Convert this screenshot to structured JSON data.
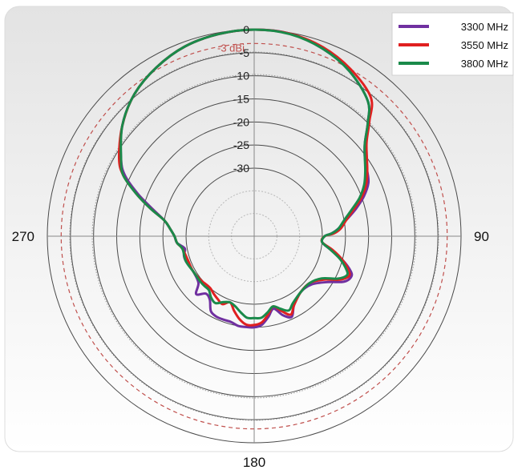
{
  "chart_data": {
    "type": "polar-line",
    "unit": "dBi",
    "r_range": [
      -30,
      0
    ],
    "r_ticks": [
      {
        "value": 0,
        "label": "0"
      },
      {
        "value": -5,
        "label": "-5"
      },
      {
        "value": -10,
        "label": "-10"
      },
      {
        "value": -15,
        "label": "-15"
      },
      {
        "value": -20,
        "label": "-20"
      },
      {
        "value": -25,
        "label": "-25"
      },
      {
        "value": -30,
        "label": "-30"
      }
    ],
    "angle_labels": [
      {
        "angle": 90,
        "label": "90"
      },
      {
        "angle": 180,
        "label": "180"
      },
      {
        "angle": 270,
        "label": "270"
      }
    ],
    "reference": {
      "value": -3,
      "label": "-3 dBi",
      "color": "#c0504d"
    },
    "grid": true,
    "legend_position": "top-right",
    "series": [
      {
        "name": "3300 MHz",
        "color": "#7030a0",
        "points": [
          [
            0,
            0
          ],
          [
            10,
            -0.2
          ],
          [
            20,
            -1.5
          ],
          [
            30,
            -3.5
          ],
          [
            40,
            -6.5
          ],
          [
            45,
            -10
          ],
          [
            50,
            -13.5
          ],
          [
            55,
            -15.5
          ],
          [
            60,
            -16.5
          ],
          [
            65,
            -17.5
          ],
          [
            70,
            -19.5
          ],
          [
            75,
            -22
          ],
          [
            80,
            -24.5
          ],
          [
            85,
            -26.5
          ],
          [
            88,
            -28
          ],
          [
            90,
            -29.5
          ],
          [
            95,
            -30
          ],
          [
            100,
            -28
          ],
          [
            105,
            -25
          ],
          [
            110,
            -22.5
          ],
          [
            113,
            -22
          ],
          [
            117,
            -23
          ],
          [
            122,
            -26
          ],
          [
            130,
            -28.5
          ],
          [
            140,
            -29
          ],
          [
            150,
            -27.5
          ],
          [
            155,
            -25.5
          ],
          [
            160,
            -26.5
          ],
          [
            165,
            -28.5
          ],
          [
            170,
            -27
          ],
          [
            175,
            -25.5
          ],
          [
            180,
            -25
          ],
          [
            185,
            -25
          ],
          [
            190,
            -25
          ],
          [
            195,
            -25.5
          ],
          [
            200,
            -25.5
          ],
          [
            205,
            -25.5
          ],
          [
            210,
            -26
          ],
          [
            215,
            -28
          ],
          [
            220,
            -28.5
          ],
          [
            225,
            -27
          ],
          [
            230,
            -29
          ],
          [
            240,
            -29.5
          ],
          [
            250,
            -29
          ],
          [
            255,
            -29
          ],
          [
            260,
            -29.5
          ],
          [
            265,
            -28
          ],
          [
            270,
            -27.5
          ],
          [
            275,
            -26.5
          ],
          [
            280,
            -25
          ],
          [
            285,
            -22
          ],
          [
            290,
            -18
          ],
          [
            295,
            -14
          ],
          [
            300,
            -11.5
          ],
          [
            310,
            -7.5
          ],
          [
            320,
            -4.5
          ],
          [
            330,
            -2.5
          ],
          [
            340,
            -1
          ],
          [
            350,
            -0.3
          ],
          [
            360,
            0
          ]
        ]
      },
      {
        "name": "3550 MHz",
        "color": "#e02020",
        "points": [
          [
            0,
            0
          ],
          [
            10,
            -0.2
          ],
          [
            20,
            -1.2
          ],
          [
            30,
            -3
          ],
          [
            40,
            -5.5
          ],
          [
            45,
            -9.5
          ],
          [
            50,
            -13
          ],
          [
            55,
            -15
          ],
          [
            60,
            -16.5
          ],
          [
            65,
            -18
          ],
          [
            70,
            -20
          ],
          [
            75,
            -22.5
          ],
          [
            80,
            -24.5
          ],
          [
            85,
            -26
          ],
          [
            88,
            -27.5
          ],
          [
            90,
            -29.5
          ],
          [
            95,
            -30
          ],
          [
            100,
            -27.5
          ],
          [
            105,
            -25
          ],
          [
            110,
            -23
          ],
          [
            113,
            -22.5
          ],
          [
            117,
            -24
          ],
          [
            122,
            -27
          ],
          [
            130,
            -29
          ],
          [
            140,
            -29
          ],
          [
            150,
            -27.5
          ],
          [
            155,
            -26
          ],
          [
            160,
            -27.5
          ],
          [
            165,
            -29
          ],
          [
            170,
            -27.5
          ],
          [
            175,
            -26
          ],
          [
            180,
            -25.5
          ],
          [
            185,
            -25.5
          ],
          [
            190,
            -26.5
          ],
          [
            195,
            -28
          ],
          [
            200,
            -29.5
          ],
          [
            205,
            -28.5
          ],
          [
            210,
            -29
          ],
          [
            215,
            -29.5
          ],
          [
            220,
            -30
          ],
          [
            225,
            -30
          ],
          [
            230,
            -29.8
          ],
          [
            240,
            -29.5
          ],
          [
            250,
            -29.5
          ],
          [
            260,
            -29
          ],
          [
            265,
            -28
          ],
          [
            270,
            -27.5
          ],
          [
            275,
            -26.5
          ],
          [
            280,
            -25
          ],
          [
            285,
            -21.5
          ],
          [
            290,
            -17.5
          ],
          [
            295,
            -13.5
          ],
          [
            300,
            -11
          ],
          [
            310,
            -7.5
          ],
          [
            320,
            -4.5
          ],
          [
            330,
            -2.5
          ],
          [
            340,
            -1
          ],
          [
            350,
            -0.3
          ],
          [
            360,
            0
          ]
        ]
      },
      {
        "name": "3800 MHz",
        "color": "#1a8a4a",
        "points": [
          [
            0,
            0
          ],
          [
            10,
            -0.3
          ],
          [
            20,
            -1.5
          ],
          [
            30,
            -3.5
          ],
          [
            40,
            -6.5
          ],
          [
            45,
            -10
          ],
          [
            50,
            -13.5
          ],
          [
            55,
            -15.5
          ],
          [
            60,
            -17
          ],
          [
            65,
            -18.5
          ],
          [
            70,
            -20.5
          ],
          [
            75,
            -23
          ],
          [
            80,
            -25
          ],
          [
            85,
            -26.5
          ],
          [
            88,
            -28
          ],
          [
            90,
            -29.5
          ],
          [
            95,
            -30
          ],
          [
            100,
            -28
          ],
          [
            105,
            -25.5
          ],
          [
            110,
            -23.5
          ],
          [
            113,
            -23
          ],
          [
            117,
            -24.5
          ],
          [
            122,
            -27.5
          ],
          [
            130,
            -29
          ],
          [
            140,
            -29
          ],
          [
            150,
            -28
          ],
          [
            155,
            -27
          ],
          [
            160,
            -28
          ],
          [
            165,
            -29
          ],
          [
            170,
            -28
          ],
          [
            175,
            -27
          ],
          [
            180,
            -27
          ],
          [
            185,
            -27
          ],
          [
            190,
            -28
          ],
          [
            195,
            -29
          ],
          [
            200,
            -29.5
          ],
          [
            205,
            -29
          ],
          [
            210,
            -28
          ],
          [
            215,
            -28.5
          ],
          [
            220,
            -29.5
          ],
          [
            225,
            -29.5
          ],
          [
            230,
            -29.5
          ],
          [
            240,
            -29.5
          ],
          [
            250,
            -29
          ],
          [
            260,
            -29
          ],
          [
            265,
            -28
          ],
          [
            270,
            -27.5
          ],
          [
            275,
            -26.5
          ],
          [
            280,
            -25
          ],
          [
            285,
            -21.5
          ],
          [
            290,
            -17.5
          ],
          [
            295,
            -13.5
          ],
          [
            300,
            -11.5
          ],
          [
            310,
            -7.5
          ],
          [
            320,
            -4.5
          ],
          [
            330,
            -2.5
          ],
          [
            340,
            -1
          ],
          [
            350,
            -0.3
          ],
          [
            360,
            0
          ]
        ]
      }
    ]
  }
}
